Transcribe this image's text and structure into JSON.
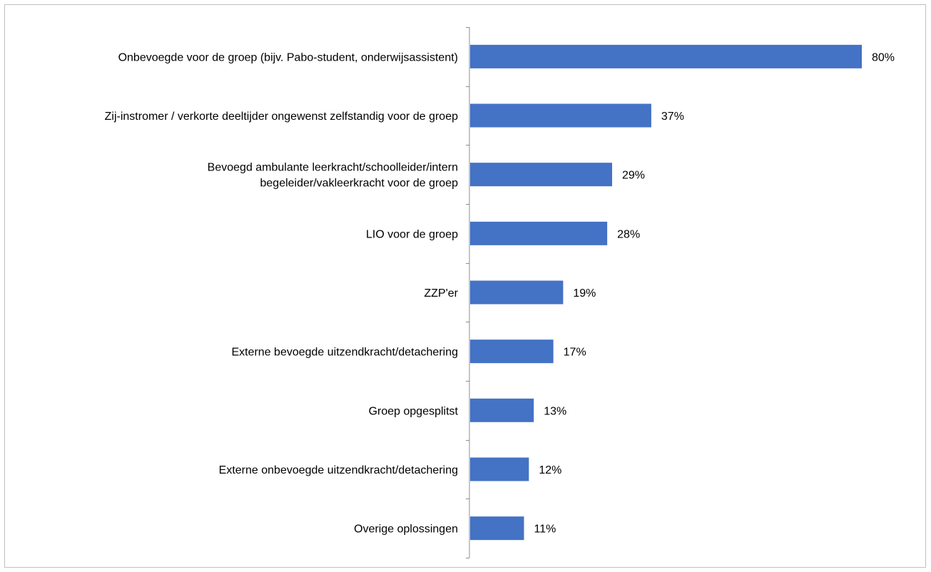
{
  "chart_data": {
    "type": "bar",
    "orientation": "horizontal",
    "title": "",
    "xlabel": "",
    "ylabel": "",
    "xlim": [
      0,
      80
    ],
    "grid": false,
    "legend": "none",
    "bar_color": "#4472C4",
    "categories": [
      [
        "Onbevoegde voor de groep (bijv. Pabo-student, onderwijsassistent)"
      ],
      [
        "Zij-instromer / verkorte deeltijder ongewenst zelfstandig voor de groep"
      ],
      [
        "Bevoegd ambulante leerkracht/schoolleider/intern",
        "begeleider/vakleerkracht voor de groep"
      ],
      [
        "LIO voor de groep"
      ],
      [
        "ZZP'er"
      ],
      [
        "Externe bevoegde uitzendkracht/detachering"
      ],
      [
        "Groep opgesplitst"
      ],
      [
        "Externe onbevoegde uitzendkracht/detachering"
      ],
      [
        "Overige oplossingen"
      ]
    ],
    "values": [
      80,
      37,
      29,
      28,
      19,
      17,
      13,
      12,
      11
    ],
    "value_labels": [
      "80%",
      "37%",
      "29%",
      "28%",
      "19%",
      "17%",
      "13%",
      "12%",
      "11%"
    ]
  }
}
